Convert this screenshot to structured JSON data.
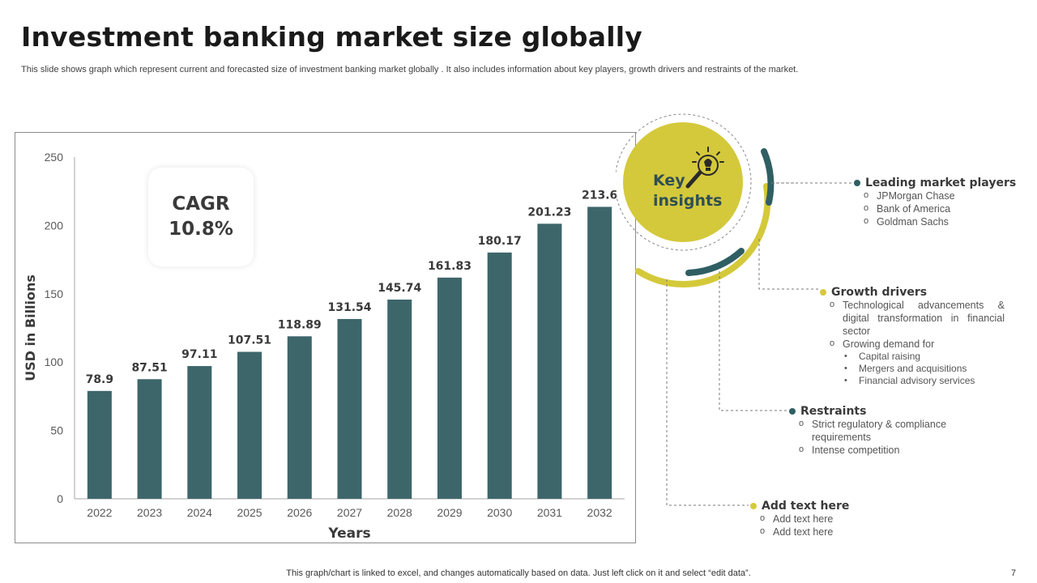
{
  "title": "Investment banking market size globally",
  "subtitle": "This slide shows graph which represent current and forecasted size of investment banking market globally . It also includes information about key players, growth drivers and restraints of the market.",
  "cagr": "CAGR\n10.8%",
  "colors": {
    "bar": "#3d666b",
    "accent_yellow": "#d4c93b",
    "dark_teal": "#2f5f63"
  },
  "chart_data": {
    "type": "bar",
    "categories": [
      "2022",
      "2023",
      "2024",
      "2025",
      "2026",
      "2027",
      "2028",
      "2029",
      "2030",
      "2031",
      "2032"
    ],
    "values": [
      78.9,
      87.51,
      97.11,
      107.51,
      118.89,
      131.54,
      145.74,
      161.83,
      180.17,
      201.23,
      213.6
    ],
    "data_labels": [
      "78.9",
      "87.51",
      "97.11",
      "107.51",
      "118.89",
      "131.54",
      "145.74",
      "161.83",
      "180.17",
      "201.23",
      "213.6"
    ],
    "title": "",
    "xlabel": "Years",
    "ylabel": "USD in Billions",
    "ylim": [
      0,
      250
    ],
    "yticks": [
      "0",
      "50",
      "100",
      "150",
      "200",
      "250"
    ],
    "grid": false
  },
  "insights": {
    "label": "Key\ninsights",
    "icon": "lightbulb-magnifier-icon",
    "leading": {
      "title": "Leading market players",
      "items": [
        "JPMorgan Chase",
        "Bank of America",
        "Goldman Sachs"
      ]
    },
    "growth": {
      "title": "Growth drivers",
      "items": [
        "Technological advancements & digital transformation in financial sector",
        "Growing demand for"
      ],
      "subitems": [
        "Capital raising",
        "Mergers and acquisitions",
        "Financial advisory services"
      ]
    },
    "restraints": {
      "title": "Restraints",
      "items": [
        "Strict regulatory & compliance requirements",
        "Intense competition"
      ]
    },
    "addtext": {
      "title": "Add text here",
      "items": [
        "Add text here",
        "Add text here"
      ]
    }
  },
  "footer": "This graph/chart is linked to excel, and changes automatically based on data. Just left click on it and select “edit data”.",
  "page_number": "7"
}
